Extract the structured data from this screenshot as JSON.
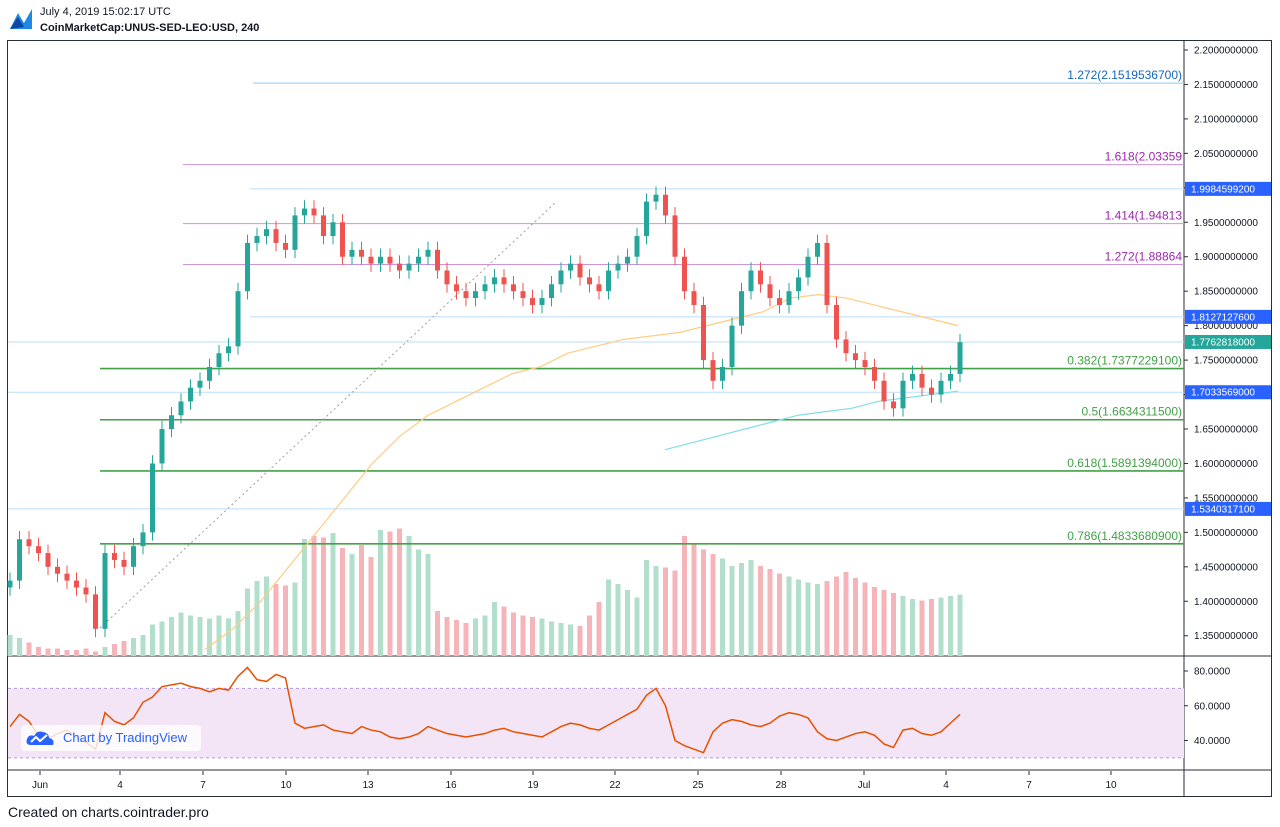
{
  "header": {
    "timestamp": "July 4, 2019 15:02:17 UTC",
    "symbol": "CoinMarketCap:UNUS-SED-LEO:USD, 240"
  },
  "footer": {
    "text": "Created on charts.cointrader.pro"
  },
  "watermark": {
    "text": "Chart by TradingView"
  },
  "colors": {
    "up": "#26a69a",
    "down": "#ef5350",
    "vol_up": "#b2dfcb",
    "vol_down": "#f5b5b8",
    "fib_blue": "#1565c0",
    "fib_purple": "#9c27b0",
    "fib_green": "#43a047",
    "rsi_line": "#e65100",
    "rsi_band": "#f3e5f5"
  },
  "chart_data": {
    "type": "candlestick",
    "y_ticks": [
      "2.2000000000",
      "2.1500000000",
      "2.1000000000",
      "2.0500000000",
      "2.0000000000",
      "1.9500000000",
      "1.9000000000",
      "1.8500000000",
      "1.8000000000",
      "1.7500000000",
      "1.7000000000",
      "1.6500000000",
      "1.6000000000",
      "1.5500000000",
      "1.5000000000",
      "1.4500000000",
      "1.4000000000",
      "1.3500000000"
    ],
    "x_ticks": [
      "Jun",
      "4",
      "7",
      "10",
      "13",
      "16",
      "19",
      "22",
      "25",
      "28",
      "Jul",
      "4",
      "7",
      "10"
    ],
    "rsi_ticks": [
      "80.0000",
      "60.0000",
      "40.0000"
    ],
    "fib_levels": [
      {
        "label": "1.272(2.1519536700)",
        "value": 2.15195367,
        "color": "blue"
      },
      {
        "label": "1.618(2.03359",
        "value": 2.03359,
        "color": "purple"
      },
      {
        "label": "1.414(1.94813",
        "value": 1.94813,
        "color": "purple"
      },
      {
        "label": "1.272(1.88864",
        "value": 1.88864,
        "color": "purple"
      },
      {
        "label": "0.382(1.7377229100)",
        "value": 1.73772291,
        "color": "green"
      },
      {
        "label": "0.5(1.6634311500)",
        "value": 1.66343115,
        "color": "green"
      },
      {
        "label": "0.618(1.5891394000)",
        "value": 1.5891394,
        "color": "green"
      },
      {
        "label": "0.786(1.4833680900)",
        "value": 1.48336809,
        "color": "green"
      }
    ],
    "price_tags": [
      {
        "label": "1.9984599200",
        "value": 1.99845992,
        "color": "#2962ff"
      },
      {
        "label": "1.8127127600",
        "value": 1.81271276,
        "color": "#2962ff"
      },
      {
        "label": "1.7762818000",
        "value": 1.7762818,
        "color": "#26a69a"
      },
      {
        "label": "1.7033569000",
        "value": 1.7033569,
        "color": "#2962ff"
      },
      {
        "label": "1.5340317100",
        "value": 1.53403171,
        "color": "#2962ff"
      }
    ],
    "close_series": [
      1.43,
      1.49,
      1.48,
      1.47,
      1.45,
      1.44,
      1.43,
      1.42,
      1.41,
      1.36,
      1.47,
      1.46,
      1.45,
      1.48,
      1.5,
      1.6,
      1.65,
      1.67,
      1.69,
      1.71,
      1.72,
      1.74,
      1.76,
      1.77,
      1.85,
      1.92,
      1.93,
      1.94,
      1.92,
      1.91,
      1.96,
      1.97,
      1.96,
      1.93,
      1.95,
      1.9,
      1.91,
      1.9,
      1.89,
      1.9,
      1.89,
      1.88,
      1.89,
      1.9,
      1.91,
      1.88,
      1.86,
      1.85,
      1.84,
      1.85,
      1.86,
      1.87,
      1.86,
      1.85,
      1.84,
      1.83,
      1.84,
      1.86,
      1.88,
      1.89,
      1.87,
      1.86,
      1.85,
      1.88,
      1.89,
      1.9,
      1.93,
      1.98,
      1.99,
      1.96,
      1.9,
      1.85,
      1.83,
      1.75,
      1.72,
      1.74,
      1.8,
      1.85,
      1.88,
      1.86,
      1.84,
      1.83,
      1.85,
      1.87,
      1.9,
      1.92,
      1.83,
      1.78,
      1.76,
      1.75,
      1.74,
      1.72,
      1.69,
      1.68,
      1.72,
      1.73,
      1.71,
      1.7,
      1.72,
      1.73,
      1.776
    ],
    "volume_series": [
      0.14,
      0.12,
      0.09,
      0.06,
      0.05,
      0.05,
      0.04,
      0.04,
      0.05,
      0.03,
      0.06,
      0.08,
      0.1,
      0.12,
      0.14,
      0.21,
      0.23,
      0.26,
      0.29,
      0.27,
      0.26,
      0.25,
      0.27,
      0.25,
      0.3,
      0.45,
      0.5,
      0.53,
      0.48,
      0.47,
      0.49,
      0.78,
      0.8,
      0.79,
      0.82,
      0.72,
      0.68,
      0.74,
      0.66,
      0.84,
      0.83,
      0.85,
      0.8,
      0.71,
      0.68,
      0.3,
      0.26,
      0.24,
      0.22,
      0.25,
      0.27,
      0.36,
      0.33,
      0.29,
      0.27,
      0.26,
      0.25,
      0.23,
      0.22,
      0.21,
      0.2,
      0.27,
      0.36,
      0.51,
      0.48,
      0.44,
      0.39,
      0.64,
      0.6,
      0.59,
      0.57,
      0.8,
      0.75,
      0.71,
      0.68,
      0.65,
      0.6,
      0.62,
      0.64,
      0.6,
      0.58,
      0.55,
      0.53,
      0.51,
      0.49,
      0.48,
      0.5,
      0.53,
      0.56,
      0.52,
      0.49,
      0.46,
      0.44,
      0.42,
      0.4,
      0.38,
      0.37,
      0.38,
      0.39,
      0.4,
      0.41
    ],
    "rsi_series": [
      48,
      55,
      51,
      43,
      41,
      44,
      46,
      42,
      39,
      35,
      56,
      51,
      49,
      53,
      62,
      65,
      71,
      72,
      73,
      71,
      70,
      68,
      70,
      69,
      77,
      82,
      75,
      74,
      78,
      76,
      50,
      47,
      48,
      49,
      46,
      45,
      44,
      48,
      46,
      45,
      42,
      41,
      42,
      44,
      48,
      46,
      44,
      43,
      42,
      43,
      44,
      46,
      47,
      45,
      44,
      43,
      42,
      45,
      48,
      50,
      49,
      47,
      46,
      49,
      52,
      55,
      58,
      66,
      70,
      60,
      40,
      37,
      35,
      33,
      45,
      50,
      52,
      51,
      49,
      48,
      50,
      54,
      56,
      55,
      53,
      45,
      41,
      40,
      42,
      44,
      45,
      43,
      38,
      36,
      46,
      47,
      44,
      43,
      45,
      50,
      55
    ],
    "ma_orange": [
      1.33,
      1.36,
      1.4,
      1.45,
      1.5,
      1.55,
      1.6,
      1.64,
      1.67,
      1.69,
      1.71,
      1.73,
      1.74,
      1.76,
      1.77,
      1.78,
      1.785,
      1.79,
      1.8,
      1.81,
      1.82,
      1.84,
      1.845,
      1.84,
      1.83,
      1.82,
      1.81,
      1.8
    ],
    "ma_blue": [
      1.62,
      1.63,
      1.64,
      1.65,
      1.66,
      1.67,
      1.675,
      1.68,
      1.69,
      1.695,
      1.7,
      1.705
    ]
  }
}
